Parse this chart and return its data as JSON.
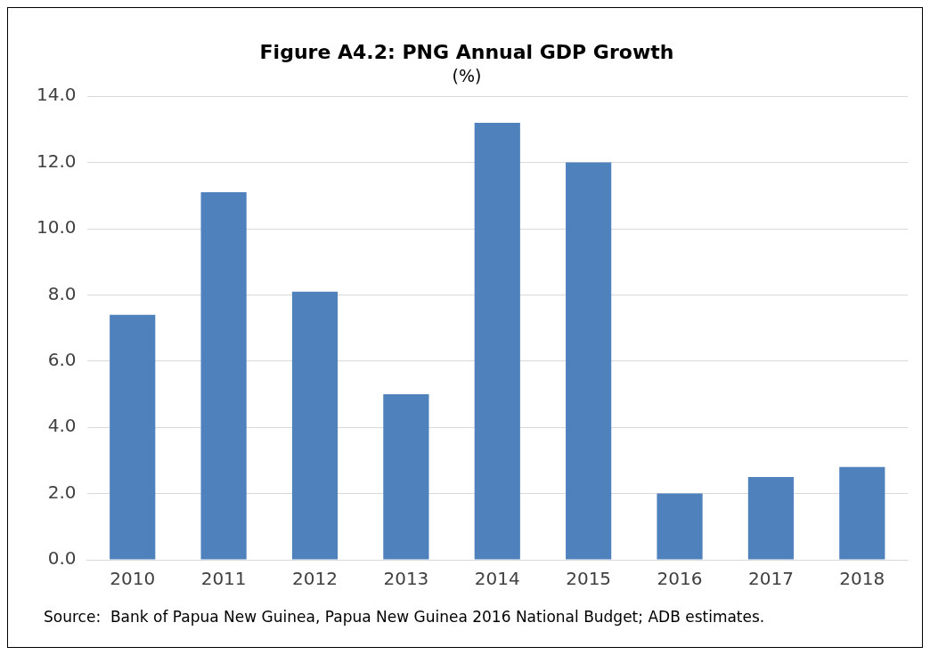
{
  "chart_data": {
    "type": "bar",
    "title": "Figure A4.2: PNG Annual GDP Growth",
    "subtitle": "(%)",
    "categories": [
      "2010",
      "2011",
      "2012",
      "2013",
      "2014",
      "2015",
      "2016",
      "2017",
      "2018"
    ],
    "values": [
      7.4,
      11.1,
      8.1,
      5.0,
      13.2,
      12.0,
      2.0,
      2.5,
      2.8
    ],
    "color": "#4f81bd",
    "ylim": [
      0,
      14
    ],
    "yticks": [
      {
        "value": 0,
        "label": "0.0"
      },
      {
        "value": 2,
        "label": "2.0"
      },
      {
        "value": 4,
        "label": "4.0"
      },
      {
        "value": 6,
        "label": "6.0"
      },
      {
        "value": 8,
        "label": "8.0"
      },
      {
        "value": 10,
        "label": "10.0"
      },
      {
        "value": 12,
        "label": "12.0"
      },
      {
        "value": 14,
        "label": "14.0"
      }
    ],
    "grid": "y",
    "legend": false,
    "annotations": [
      "Source:  Bank of Papua New Guinea, Papua New Guinea 2016 National Budget; ADB estimates."
    ]
  }
}
